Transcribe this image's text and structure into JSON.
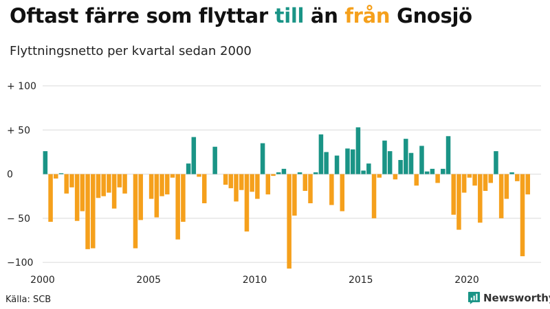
{
  "header": {
    "title_part1": "Oftast färre som flyttar ",
    "title_till": "till",
    "title_part2": " än ",
    "title_fran": "från",
    "title_part3": " Gnosjö",
    "subtitle": "Flyttningsnetto per kvartal sedan 2000"
  },
  "footer": {
    "source": "Källa: SCB",
    "brand": "Newsworthy"
  },
  "colors": {
    "positive": "#1a9486",
    "negative": "#f5a01c",
    "grid": "#d9d9d9",
    "axis_text": "#222222",
    "brand_icon": "#1a9486"
  },
  "chart_data": {
    "type": "bar",
    "title": "Oftast färre som flyttar till än från Gnosjö",
    "subtitle": "Flyttningsnetto per kvartal sedan 2000",
    "xlabel": "",
    "ylabel": "",
    "ylim": [
      -110,
      100
    ],
    "yticks": [
      100,
      50,
      0,
      -50,
      -100
    ],
    "ytick_labels": [
      "+ 100",
      "+  50",
      "0",
      "− 50",
      "−100"
    ],
    "xlim": [
      2000,
      2023.5
    ],
    "xticks": [
      2000,
      2005,
      2010,
      2015,
      2020
    ],
    "xtick_labels": [
      "2000",
      "2005",
      "2010",
      "2015",
      "2020"
    ],
    "start_year": 2000,
    "quarters_per_year": 4,
    "values": [
      26,
      -54,
      -5,
      1,
      -22,
      -15,
      -53,
      -42,
      -85,
      -84,
      -27,
      -25,
      -21,
      -39,
      -15,
      -22,
      0,
      -84,
      -52,
      0,
      -28,
      -49,
      -25,
      -23,
      -4,
      -74,
      -54,
      12,
      42,
      -3,
      -33,
      0,
      31,
      0,
      -12,
      -16,
      -31,
      -18,
      -65,
      -20,
      -28,
      35,
      -23,
      -2,
      2,
      6,
      -107,
      -47,
      2,
      -19,
      -33,
      2,
      45,
      25,
      -35,
      21,
      -42,
      29,
      28,
      53,
      4,
      12,
      -50,
      -4,
      38,
      26,
      -6,
      16,
      40,
      24,
      -13,
      32,
      3,
      6,
      -10,
      6,
      43,
      -46,
      -63,
      -21,
      -4,
      -13,
      -55,
      -19,
      -10,
      26,
      -50,
      -28,
      2,
      -8,
      -93,
      -23
    ]
  }
}
